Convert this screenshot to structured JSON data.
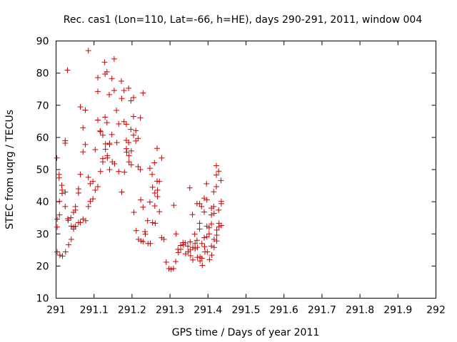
{
  "chart_data": {
    "type": "scatter",
    "title": "Rec. cas1 (Lon=110, Lat=-66, h=HE), days 290-291, 2011, window 004",
    "xlabel": "GPS time / Days of year 2011",
    "ylabel": "STEC from uqrg / TECUs",
    "xlim": [
      291,
      292
    ],
    "ylim": [
      10,
      90
    ],
    "x_ticks": [
      "291",
      "291.1",
      "291.2",
      "291.3",
      "291.4",
      "291.5",
      "291.6",
      "291.7",
      "291.8",
      "291.9",
      "292"
    ],
    "y_ticks": [
      "10",
      "20",
      "30",
      "40",
      "50",
      "60",
      "70",
      "80",
      "90"
    ],
    "grid": false,
    "legend": "none",
    "marker": "+",
    "marker_color": "#cc0000",
    "points": [
      [
        291.002,
        53.6
      ],
      [
        291.003,
        34.6
      ],
      [
        291.003,
        32.1
      ],
      [
        291.003,
        24.4
      ],
      [
        291.008,
        48.5
      ],
      [
        291.008,
        47.4
      ],
      [
        291.009,
        40.1
      ],
      [
        291.009,
        35.9
      ],
      [
        291.01,
        23.4
      ],
      [
        291.015,
        45.1
      ],
      [
        291.016,
        43.6
      ],
      [
        291.016,
        42.6
      ],
      [
        291.017,
        23.1
      ],
      [
        291.024,
        59.0
      ],
      [
        291.024,
        58.2
      ],
      [
        291.024,
        43.0
      ],
      [
        291.024,
        38.5
      ],
      [
        291.025,
        24.4
      ],
      [
        291.03,
        80.9
      ],
      [
        291.031,
        34.7
      ],
      [
        291.032,
        34.2
      ],
      [
        291.033,
        26.6
      ],
      [
        291.039,
        35.0
      ],
      [
        291.04,
        32.4
      ],
      [
        291.04,
        28.3
      ],
      [
        291.046,
        36.7
      ],
      [
        291.046,
        32.1
      ],
      [
        291.046,
        31.5
      ],
      [
        291.051,
        38.5
      ],
      [
        291.051,
        37.4
      ],
      [
        291.051,
        32.4
      ],
      [
        291.059,
        44.0
      ],
      [
        291.059,
        42.7
      ],
      [
        291.059,
        33.5
      ],
      [
        291.064,
        69.5
      ],
      [
        291.064,
        48.5
      ],
      [
        291.064,
        33.5
      ],
      [
        291.071,
        63.0
      ],
      [
        291.071,
        55.5
      ],
      [
        291.071,
        34.6
      ],
      [
        291.077,
        68.5
      ],
      [
        291.077,
        57.8
      ],
      [
        291.078,
        34.1
      ],
      [
        291.085,
        87.0
      ],
      [
        291.085,
        47.6
      ],
      [
        291.085,
        38.5
      ],
      [
        291.09,
        45.6
      ],
      [
        291.09,
        40.1
      ],
      [
        291.097,
        46.3
      ],
      [
        291.097,
        40.9
      ],
      [
        291.103,
        56.2
      ],
      [
        291.103,
        43.6
      ],
      [
        291.11,
        78.6
      ],
      [
        291.11,
        74.3
      ],
      [
        291.11,
        65.4
      ],
      [
        291.11,
        44.7
      ],
      [
        291.116,
        62.0
      ],
      [
        291.117,
        61.8
      ],
      [
        291.117,
        49.4
      ],
      [
        291.123,
        60.7
      ],
      [
        291.123,
        53.4
      ],
      [
        291.123,
        52.4
      ],
      [
        291.128,
        83.4
      ],
      [
        291.129,
        79.7
      ],
      [
        291.129,
        66.3
      ],
      [
        291.13,
        58.0
      ],
      [
        291.13,
        56.3
      ],
      [
        291.134,
        80.4
      ],
      [
        291.134,
        64.6
      ],
      [
        291.135,
        54.3
      ],
      [
        291.135,
        53.6
      ],
      [
        291.14,
        73.3
      ],
      [
        291.141,
        58.2
      ],
      [
        291.141,
        57.8
      ],
      [
        291.141,
        50.0
      ],
      [
        291.147,
        78.3
      ],
      [
        291.147,
        60.9
      ],
      [
        291.148,
        52.4
      ],
      [
        291.153,
        84.4
      ],
      [
        291.153,
        74.6
      ],
      [
        291.154,
        51.8
      ],
      [
        291.159,
        68.4
      ],
      [
        291.16,
        58.4
      ],
      [
        291.165,
        64.2
      ],
      [
        291.165,
        49.4
      ],
      [
        291.172,
        77.5
      ],
      [
        291.173,
        72.1
      ],
      [
        291.173,
        43.0
      ],
      [
        291.179,
        74.6
      ],
      [
        291.179,
        64.9
      ],
      [
        291.18,
        49.2
      ],
      [
        291.185,
        64.1
      ],
      [
        291.185,
        59.1
      ],
      [
        291.185,
        56.5
      ],
      [
        291.186,
        55.4
      ],
      [
        291.191,
        75.3
      ],
      [
        291.191,
        58.4
      ],
      [
        291.192,
        54.3
      ],
      [
        291.192,
        52.4
      ],
      [
        291.197,
        71.4
      ],
      [
        291.197,
        62.5
      ],
      [
        291.198,
        55.8
      ],
      [
        291.198,
        51.5
      ],
      [
        291.204,
        72.4
      ],
      [
        291.204,
        66.5
      ],
      [
        291.204,
        60.7
      ],
      [
        291.205,
        36.7
      ],
      [
        291.21,
        62.1
      ],
      [
        291.21,
        58.9
      ],
      [
        291.211,
        31.0
      ],
      [
        291.216,
        59.7
      ],
      [
        291.216,
        50.9
      ],
      [
        291.217,
        28.3
      ],
      [
        291.222,
        66.1
      ],
      [
        291.222,
        50.0
      ],
      [
        291.223,
        40.6
      ],
      [
        291.224,
        27.8
      ],
      [
        291.229,
        73.8
      ],
      [
        291.229,
        38.3
      ],
      [
        291.229,
        27.6
      ],
      [
        291.234,
        30.7
      ],
      [
        291.235,
        29.9
      ],
      [
        291.241,
        34.1
      ],
      [
        291.242,
        27.0
      ],
      [
        291.247,
        50.4
      ],
      [
        291.247,
        39.9
      ],
      [
        291.248,
        27.0
      ],
      [
        291.253,
        48.5
      ],
      [
        291.254,
        44.5
      ],
      [
        291.254,
        33.5
      ],
      [
        291.259,
        52.1
      ],
      [
        291.26,
        42.7
      ],
      [
        291.26,
        38.7
      ],
      [
        291.261,
        33.3
      ],
      [
        291.266,
        56.6
      ],
      [
        291.266,
        46.4
      ],
      [
        291.267,
        43.6
      ],
      [
        291.267,
        41.6
      ],
      [
        291.272,
        46.3
      ],
      [
        291.272,
        36.9
      ],
      [
        291.278,
        53.6
      ],
      [
        291.278,
        28.8
      ],
      [
        291.284,
        28.3
      ],
      [
        291.29,
        21.2
      ],
      [
        291.297,
        19.2
      ],
      [
        291.303,
        19.0
      ],
      [
        291.309,
        19.2
      ],
      [
        291.31,
        38.9
      ],
      [
        291.315,
        21.4
      ],
      [
        291.316,
        30.0
      ],
      [
        291.321,
        25.2
      ],
      [
        291.322,
        24.2
      ],
      [
        291.328,
        26.4
      ],
      [
        291.328,
        25.2
      ],
      [
        291.334,
        27.3
      ],
      [
        291.335,
        26.6
      ],
      [
        291.34,
        27.2
      ],
      [
        291.341,
        23.8
      ],
      [
        291.347,
        26.2
      ],
      [
        291.348,
        24.4
      ],
      [
        291.352,
        44.3
      ],
      [
        291.353,
        27.5
      ],
      [
        291.353,
        25.0
      ],
      [
        291.354,
        23.2
      ],
      [
        291.359,
        36.0
      ],
      [
        291.36,
        25.8
      ],
      [
        291.36,
        21.9
      ],
      [
        291.365,
        29.9
      ],
      [
        291.366,
        27.0
      ],
      [
        291.366,
        25.4
      ],
      [
        291.371,
        39.4
      ],
      [
        291.371,
        28.0
      ],
      [
        291.372,
        25.8
      ],
      [
        291.372,
        22.7
      ],
      [
        291.378,
        39.4
      ],
      [
        291.378,
        33.3
      ],
      [
        291.378,
        31.5
      ],
      [
        291.379,
        22.8
      ],
      [
        291.379,
        21.6
      ],
      [
        291.383,
        38.5
      ],
      [
        291.384,
        27.0
      ],
      [
        291.384,
        22.4
      ],
      [
        291.385,
        20.2
      ],
      [
        291.39,
        41.1
      ],
      [
        291.39,
        36.8
      ],
      [
        291.39,
        28.8
      ],
      [
        291.391,
        26.0
      ],
      [
        291.392,
        24.4
      ],
      [
        291.396,
        45.6
      ],
      [
        291.397,
        40.6
      ],
      [
        291.397,
        32.4
      ],
      [
        291.397,
        29.1
      ],
      [
        291.398,
        24.4
      ],
      [
        291.403,
        31.9
      ],
      [
        291.403,
        30.0
      ],
      [
        291.404,
        22.0
      ],
      [
        291.409,
        38.0
      ],
      [
        291.409,
        35.9
      ],
      [
        291.409,
        33.1
      ],
      [
        291.409,
        26.2
      ],
      [
        291.41,
        23.4
      ],
      [
        291.415,
        43.1
      ],
      [
        291.415,
        38.5
      ],
      [
        291.416,
        36.4
      ],
      [
        291.416,
        28.3
      ],
      [
        291.416,
        25.8
      ],
      [
        291.422,
        51.2
      ],
      [
        291.422,
        48.3
      ],
      [
        291.422,
        44.7
      ],
      [
        291.423,
        31.2
      ],
      [
        291.423,
        29.6
      ],
      [
        291.423,
        27.8
      ],
      [
        291.428,
        49.5
      ],
      [
        291.428,
        37.4
      ],
      [
        291.429,
        33.3
      ],
      [
        291.429,
        32.2
      ],
      [
        291.434,
        46.6
      ],
      [
        291.435,
        40.1
      ],
      [
        291.435,
        39.4
      ],
      [
        291.435,
        32.6
      ]
    ]
  }
}
